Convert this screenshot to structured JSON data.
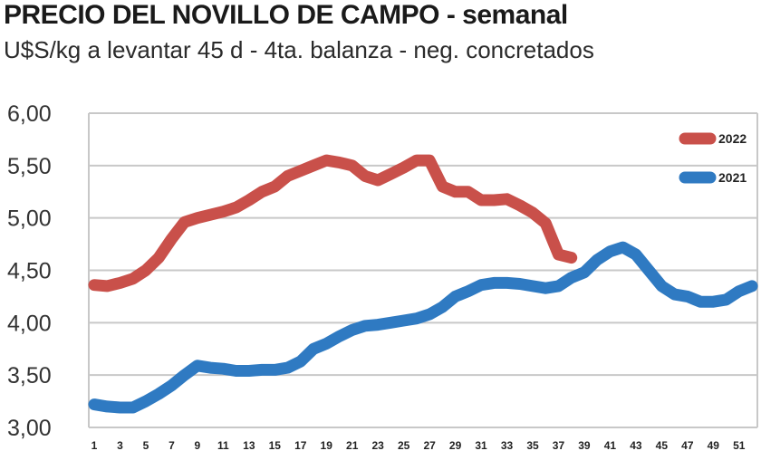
{
  "chart_data": {
    "type": "line",
    "title": "PRECIO DEL NOVILLO DE CAMPO - semanal",
    "subtitle": "U$S/kg a levantar 45 d - 4ta. balanza - neg. concretados",
    "xlabel": "",
    "ylabel": "",
    "ylim": [
      3.0,
      6.0
    ],
    "y_ticks": [
      3.0,
      3.5,
      4.0,
      4.5,
      5.0,
      5.5,
      6.0
    ],
    "y_tick_labels": [
      "3,00",
      "3,50",
      "4,00",
      "4,50",
      "5,00",
      "5,50",
      "6,00"
    ],
    "x_tick_labels": [
      "1",
      "3",
      "5",
      "7",
      "9",
      "11",
      "13",
      "15",
      "17",
      "19",
      "21",
      "23",
      "25",
      "27",
      "29",
      "31",
      "33",
      "35",
      "37",
      "39",
      "41",
      "43",
      "45",
      "47",
      "49",
      "51"
    ],
    "grid": true,
    "legend_position": "top-right",
    "series": [
      {
        "name": "2022",
        "color": "#c9504a",
        "x": [
          1,
          2,
          3,
          4,
          5,
          6,
          7,
          8,
          9,
          10,
          11,
          12,
          13,
          14,
          15,
          16,
          17,
          18,
          19,
          20,
          21,
          22,
          23,
          24,
          25,
          26,
          27,
          28,
          29,
          30,
          31,
          32,
          33,
          34,
          35,
          36,
          37,
          38
        ],
        "values": [
          4.36,
          4.35,
          4.38,
          4.42,
          4.5,
          4.62,
          4.8,
          4.96,
          5.0,
          5.03,
          5.06,
          5.1,
          5.17,
          5.25,
          5.3,
          5.4,
          5.45,
          5.5,
          5.55,
          5.53,
          5.5,
          5.4,
          5.36,
          5.42,
          5.48,
          5.55,
          5.55,
          5.3,
          5.25,
          5.25,
          5.17,
          5.17,
          5.18,
          5.12,
          5.05,
          4.95,
          4.65,
          4.62
        ]
      },
      {
        "name": "2021",
        "color": "#2f7ac2",
        "x": [
          1,
          2,
          3,
          4,
          5,
          6,
          7,
          8,
          9,
          10,
          11,
          12,
          13,
          14,
          15,
          16,
          17,
          18,
          19,
          20,
          21,
          22,
          23,
          24,
          25,
          26,
          27,
          28,
          29,
          30,
          31,
          32,
          33,
          34,
          35,
          36,
          37,
          38,
          39,
          40,
          41,
          42,
          43,
          44,
          45,
          46,
          47,
          48,
          49,
          50,
          51,
          52
        ],
        "values": [
          3.22,
          3.2,
          3.19,
          3.19,
          3.25,
          3.32,
          3.4,
          3.5,
          3.59,
          3.57,
          3.56,
          3.54,
          3.54,
          3.55,
          3.55,
          3.57,
          3.63,
          3.75,
          3.8,
          3.87,
          3.93,
          3.97,
          3.98,
          4.0,
          4.02,
          4.04,
          4.08,
          4.15,
          4.25,
          4.3,
          4.36,
          4.38,
          4.38,
          4.37,
          4.35,
          4.33,
          4.35,
          4.43,
          4.48,
          4.6,
          4.68,
          4.72,
          4.65,
          4.5,
          4.35,
          4.27,
          4.25,
          4.2,
          4.2,
          4.22,
          4.3,
          4.35
        ]
      }
    ]
  }
}
